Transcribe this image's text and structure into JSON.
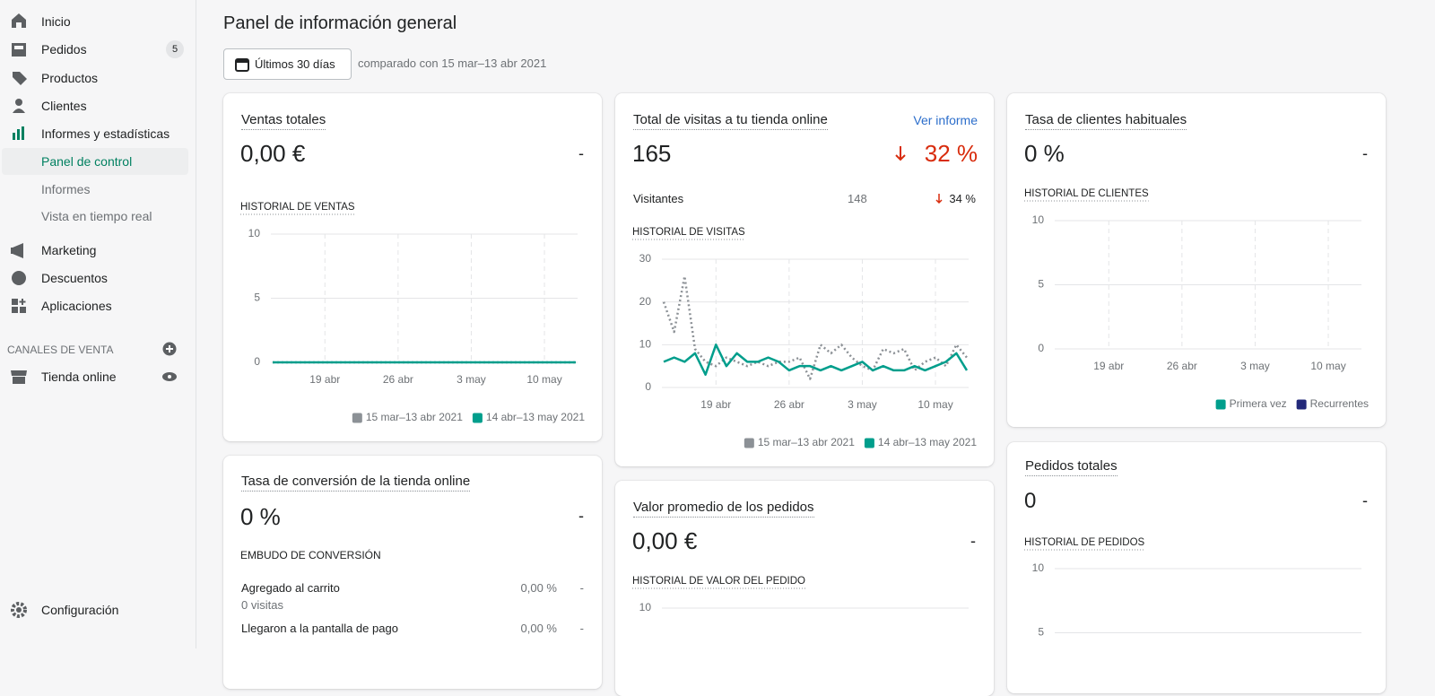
{
  "sidebar": {
    "items": [
      "Inicio",
      "Pedidos",
      "Productos",
      "Clientes",
      "Informes y estadísticas"
    ],
    "orders_badge": 5,
    "subitems": [
      "Panel de control",
      "Informes",
      "Vista en tiempo real"
    ],
    "items2": [
      "Marketing",
      "Descuentos",
      "Aplicaciones"
    ],
    "channels_title": "CANALES DE VENTA",
    "channels": [
      "Tienda online"
    ],
    "settings": "Configuración"
  },
  "header": {
    "title": "Panel de información general",
    "date_button": "Últimos 30 días",
    "comparison": "comparado con 15 mar–13 abr 2021"
  },
  "cards": {
    "sales": {
      "title": "Ventas totales",
      "value": "0,00 €",
      "change": "-"
    },
    "visits": {
      "title": "Total de visitas a tu tienda online",
      "link": "Ver informe",
      "value": 165,
      "change": "32 %",
      "rows": [
        {
          "label": "Visitantes",
          "value": 148,
          "change": "34 %"
        }
      ]
    },
    "returning": {
      "title": "Tasa de clientes habituales",
      "value": "0 %",
      "change": "-"
    },
    "conversion": {
      "title": "Tasa de conversión de la tienda online",
      "value": "0 %",
      "change": "-",
      "subtitle": "EMBUDO DE CONVERSIÓN",
      "rows": [
        {
          "label": "Agregado al carrito",
          "detail": "0 visitas",
          "value": "0,00 %",
          "change": "-"
        },
        {
          "label": "Llegaron a la pantalla de pago",
          "value": "0,00 %",
          "change": "-"
        }
      ]
    },
    "aov": {
      "title": "Valor promedio de los pedidos",
      "value": "0,00 €",
      "change": "-"
    },
    "orders": {
      "title": "Pedidos totales",
      "value": 0,
      "change": "-"
    }
  },
  "chart_data": [
    {
      "type": "line",
      "title": "HISTORIAL DE VENTAS",
      "categories": [
        null,
        null,
        null,
        null,
        null,
        "19 abr",
        null,
        null,
        null,
        null,
        null,
        null,
        "26 abr",
        null,
        null,
        null,
        null,
        null,
        null,
        "3 may",
        null,
        null,
        null,
        null,
        null,
        null,
        "10 may",
        null,
        null,
        null
      ],
      "ylim": [
        0,
        10
      ],
      "yticks": [
        0,
        5,
        10
      ],
      "grid": true,
      "series": [
        {
          "name": "15 mar–13 abr 2021",
          "color": "#8c9196",
          "style": "dotted",
          "values": [
            0,
            0,
            0,
            0,
            0,
            0,
            0,
            0,
            0,
            0,
            0,
            0,
            0,
            0,
            0,
            0,
            0,
            0,
            0,
            0,
            0,
            0,
            0,
            0,
            0,
            0,
            0,
            0,
            0,
            0
          ]
        },
        {
          "name": "14 abr–13 may 2021",
          "color": "#009e8c",
          "style": "solid",
          "values": [
            0,
            0,
            0,
            0,
            0,
            0,
            0,
            0,
            0,
            0,
            0,
            0,
            0,
            0,
            0,
            0,
            0,
            0,
            0,
            0,
            0,
            0,
            0,
            0,
            0,
            0,
            0,
            0,
            0,
            0
          ]
        }
      ]
    },
    {
      "type": "line",
      "title": "HISTORIAL DE VISITAS",
      "categories": [
        null,
        null,
        null,
        null,
        null,
        "19 abr",
        null,
        null,
        null,
        null,
        null,
        null,
        "26 abr",
        null,
        null,
        null,
        null,
        null,
        null,
        "3 may",
        null,
        null,
        null,
        null,
        null,
        null,
        "10 may",
        null,
        null,
        null
      ],
      "ylim": [
        0,
        30
      ],
      "yticks": [
        0,
        10,
        20,
        30
      ],
      "grid": true,
      "series": [
        {
          "name": "15 mar–13 abr 2021",
          "color": "#8c9196",
          "style": "dotted",
          "values": [
            20,
            13,
            26,
            9,
            6,
            5,
            7,
            6,
            5,
            6,
            5,
            6,
            6,
            7,
            2,
            10,
            8,
            10,
            7,
            5,
            4,
            9,
            8,
            9,
            4,
            6,
            7,
            5,
            10,
            7
          ]
        },
        {
          "name": "14 abr–13 may 2021",
          "color": "#009e8c",
          "style": "solid",
          "values": [
            6,
            7,
            6,
            8,
            3,
            10,
            5,
            8,
            6,
            6,
            7,
            6,
            4,
            5,
            5,
            4,
            5,
            4,
            5,
            6,
            4,
            5,
            4,
            4,
            5,
            4,
            5,
            6,
            8,
            4
          ]
        }
      ]
    },
    {
      "type": "line",
      "title": "HISTORIAL DE CLIENTES",
      "categories": [
        null,
        null,
        null,
        null,
        null,
        "19 abr",
        null,
        null,
        null,
        null,
        null,
        null,
        "26 abr",
        null,
        null,
        null,
        null,
        null,
        null,
        "3 may",
        null,
        null,
        null,
        null,
        null,
        null,
        "10 may",
        null,
        null,
        null
      ],
      "ylim": [
        0,
        10
      ],
      "yticks": [
        0,
        5,
        10
      ],
      "grid": true,
      "series": [
        {
          "name": "Primera vez",
          "color": "#009e8c"
        },
        {
          "name": "Recurrentes",
          "color": "#23297a"
        }
      ]
    },
    {
      "type": "line",
      "title": "HISTORIAL DE VALOR DEL PEDIDO",
      "ylim": [
        0,
        10
      ],
      "yticks": [
        10
      ],
      "grid": true
    },
    {
      "type": "line",
      "title": "HISTORIAL DE PEDIDOS",
      "ylim": [
        0,
        10
      ],
      "yticks": [
        5,
        10
      ],
      "grid": true
    }
  ]
}
